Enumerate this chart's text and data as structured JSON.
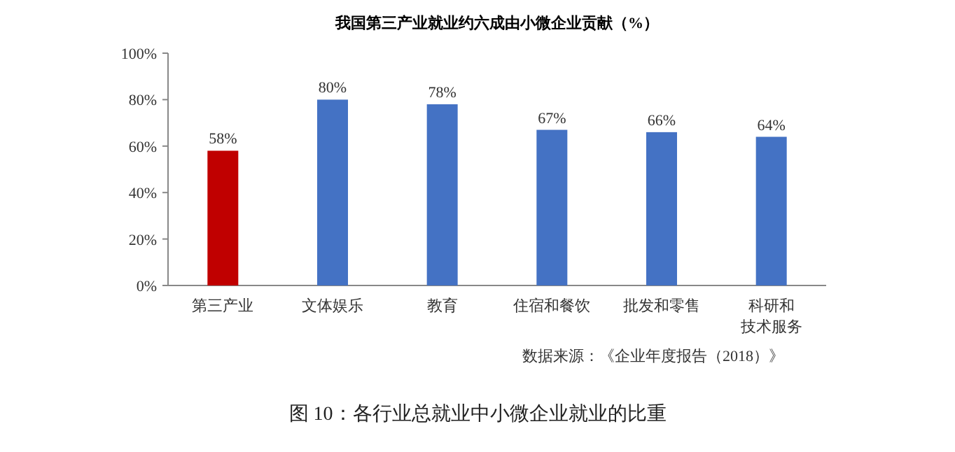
{
  "chart_data": {
    "type": "bar",
    "title": "我国第三产业就业约六成由小微企业贡献（%）",
    "categories": [
      "第三产业",
      "文体娱乐",
      "教育",
      "住宿和餐饮",
      "批发和零售",
      "科研和技术服务"
    ],
    "values": [
      58,
      80,
      78,
      67,
      66,
      64
    ],
    "colors": [
      "#c00000",
      "#4472c4",
      "#4472c4",
      "#4472c4",
      "#4472c4",
      "#4472c4"
    ],
    "value_labels": [
      "58%",
      "80%",
      "78%",
      "67%",
      "66%",
      "64%"
    ],
    "ylim": [
      0,
      100
    ],
    "yticks": [
      {
        "value": 0,
        "label": "0%"
      },
      {
        "value": 20,
        "label": "20%"
      },
      {
        "value": 40,
        "label": "40%"
      },
      {
        "value": 60,
        "label": "60%"
      },
      {
        "value": 80,
        "label": "80%"
      },
      {
        "value": 100,
        "label": "100%"
      }
    ],
    "grid": false,
    "annotations": [
      "数据来源：《企业年度报告（2018）》",
      "图 10：各行业总就业中小微企业就业的比重"
    ]
  }
}
